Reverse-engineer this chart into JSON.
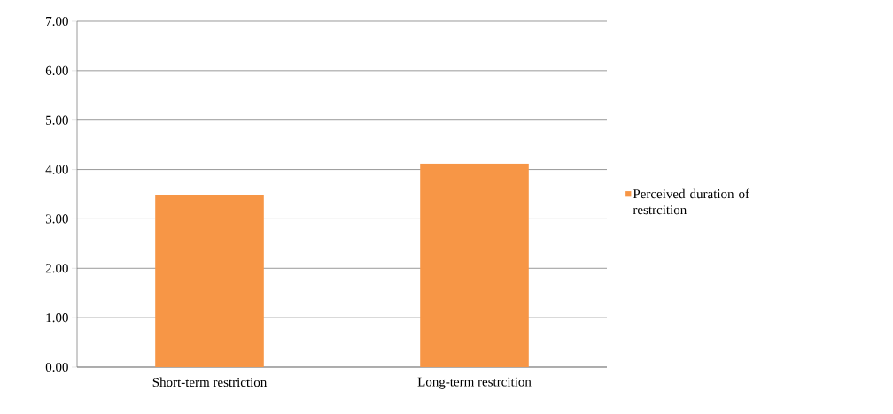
{
  "chart_data": {
    "type": "bar",
    "categories": [
      "Short-term restriction",
      "Long-term restrcition"
    ],
    "series": [
      {
        "name": "Perceived duration of restrcition",
        "color": "#f79646",
        "values": [
          3.49,
          4.12
        ]
      }
    ],
    "ylim": [
      0,
      7
    ],
    "yticks": [
      {
        "value": 0,
        "label": "0.00"
      },
      {
        "value": 1,
        "label": "1.00"
      },
      {
        "value": 2,
        "label": "2.00"
      },
      {
        "value": 3,
        "label": "3.00"
      },
      {
        "value": 4,
        "label": "4.00"
      },
      {
        "value": 5,
        "label": "5.00"
      },
      {
        "value": 6,
        "label": "6.00"
      },
      {
        "value": 7,
        "label": "7.00"
      }
    ],
    "grid": "y",
    "legend": "right"
  }
}
